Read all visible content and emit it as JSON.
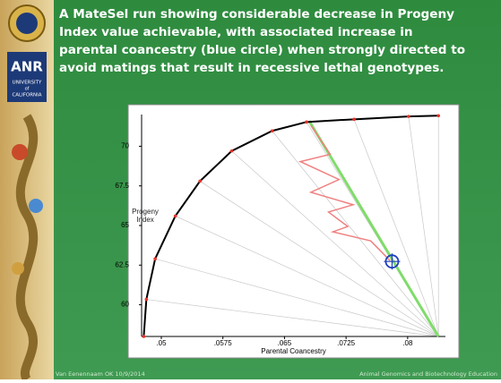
{
  "title_lines": [
    "A MateSel run showing considerable decrease in Progeny",
    "Index value achievable, with associated increase in",
    "parental coancestry (blue circle) when strongly directed to",
    "avoid matings that result in recessive lethal genotypes."
  ],
  "sidebar": {
    "logo_lines": [
      "ANR",
      "UNIVERSITY",
      "of",
      "CALIFORNIA"
    ]
  },
  "footer": {
    "left": "Van Eenennaam OK 10/9/2014",
    "right": "Animal Genomics and Biotechnology Education"
  },
  "chart_data": {
    "type": "line",
    "x_label": "Parental Coancestry",
    "y_label": "Progeny Index",
    "xlim": [
      0.0476,
      0.0846
    ],
    "ylim": [
      58,
      72
    ],
    "xticks": [
      {
        "value": 0.05,
        "label": ".05"
      },
      {
        "value": 0.0575,
        "label": ".0575"
      },
      {
        "value": 0.065,
        "label": ".065"
      },
      {
        "value": 0.0725,
        "label": ".0725"
      },
      {
        "value": 0.08,
        "label": ".08"
      }
    ],
    "yticks": [
      60,
      62.5,
      65,
      67.5,
      70
    ],
    "frontier": {
      "color": "#000000",
      "marker_color": "#e8322a",
      "x": [
        0.04786,
        0.04818,
        0.04925,
        0.05171,
        0.05471,
        0.05857,
        0.0635,
        0.06768,
        0.07347,
        0.08011,
        0.08375
      ],
      "y": [
        58,
        60.34,
        62.9,
        65.6,
        67.8,
        69.7,
        70.97,
        71.53,
        71.7,
        71.88,
        71.93
      ]
    },
    "search_path": {
      "color": "#f08080",
      "x": [
        0.06821,
        0.07057,
        0.06693,
        0.07164,
        0.06821,
        0.07336,
        0.07036,
        0.07271,
        0.07089,
        0.0755,
        0.07786
      ],
      "y": [
        71.31,
        69.49,
        69.03,
        67.9,
        67.1,
        66.31,
        65.85,
        64.94,
        64.6,
        64.03,
        62.78
      ]
    },
    "target_line": {
      "color": "#7fdc6a",
      "x": [
        0.068,
        0.08375
      ],
      "y": [
        71.6,
        58
      ]
    },
    "selected_point": {
      "color": "#1f3fbf",
      "x": 0.0781,
      "y": 62.73
    }
  }
}
